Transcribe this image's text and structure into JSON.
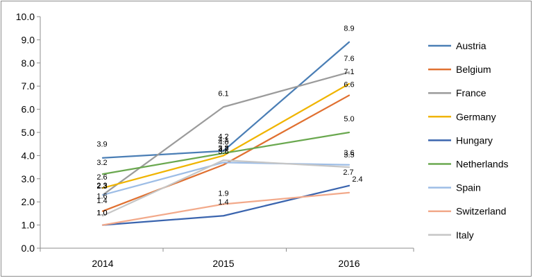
{
  "chart_data": {
    "type": "line",
    "title": "",
    "xlabel": "",
    "ylabel": "",
    "x": [
      "2014",
      "2015",
      "2016"
    ],
    "ylim": [
      0,
      10
    ],
    "yticks": [
      "0.0",
      "1.0",
      "2.0",
      "3.0",
      "4.0",
      "5.0",
      "6.0",
      "7.0",
      "8.0",
      "9.0",
      "10.0"
    ],
    "grid": false,
    "legend_position": "right",
    "series": [
      {
        "name": "Austria",
        "color": "#4a7eb5",
        "values": [
          3.9,
          4.2,
          8.9
        ],
        "labels": [
          "3.9",
          "4.2",
          "8.9"
        ]
      },
      {
        "name": "Belgium",
        "color": "#e07030",
        "values": [
          1.6,
          3.6,
          6.6
        ],
        "labels": [
          "1.6",
          "3.6",
          "6.6"
        ]
      },
      {
        "name": "France",
        "color": "#9b9b9b",
        "values": [
          2.3,
          6.1,
          7.6
        ],
        "labels": [
          "2.3",
          "6.1",
          "7.6"
        ]
      },
      {
        "name": "Germany",
        "color": "#f0b400",
        "values": [
          2.6,
          4.0,
          7.1
        ],
        "labels": [
          "2.6",
          "4.0",
          "7.1"
        ]
      },
      {
        "name": "Hungary",
        "color": "#3a64ae",
        "values": [
          1.0,
          1.4,
          2.7
        ],
        "labels": [
          "1.0",
          "1.4",
          "2.7"
        ]
      },
      {
        "name": "Netherlands",
        "color": "#6aa84f",
        "values": [
          3.2,
          4.1,
          5.0
        ],
        "labels": [
          "3.2",
          "4.1",
          "5.0"
        ]
      },
      {
        "name": "Spain",
        "color": "#9dbde6",
        "values": [
          2.3,
          3.7,
          3.6
        ],
        "labels": [
          "2.3",
          "3.7",
          "3.6"
        ]
      },
      {
        "name": "Switzerland",
        "color": "#f2a98a",
        "values": [
          1.0,
          1.9,
          2.4
        ],
        "labels": [
          "1.0",
          "1.9",
          "2.4"
        ]
      },
      {
        "name": "Italy",
        "color": "#c6c6c6",
        "values": [
          1.4,
          3.8,
          3.5
        ],
        "labels": [
          "1.4",
          "3.8",
          "3.5"
        ]
      }
    ]
  }
}
